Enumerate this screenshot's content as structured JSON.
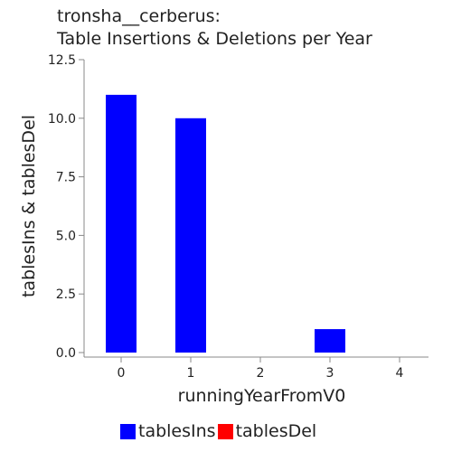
{
  "chart_data": {
    "type": "bar",
    "title_line1": "tronsha__cerberus:",
    "title_line2": "Table Insertions & Deletions per Year",
    "xlabel": "runningYearFromV0",
    "ylabel": "tablesIns & tablesDel",
    "categories": [
      "0",
      "1",
      "2",
      "3",
      "4"
    ],
    "series": [
      {
        "name": "tablesIns",
        "color": "#0000ff",
        "values": [
          11,
          10,
          0,
          1,
          0
        ]
      },
      {
        "name": "tablesDel",
        "color": "#ff0000",
        "values": [
          0,
          0,
          0,
          0,
          0
        ]
      }
    ],
    "yticks": [
      "0.0",
      "2.5",
      "5.0",
      "7.5",
      "10.0",
      "12.5"
    ],
    "ylim": [
      0,
      12.5
    ],
    "legend_position": "bottom",
    "grid": false
  }
}
